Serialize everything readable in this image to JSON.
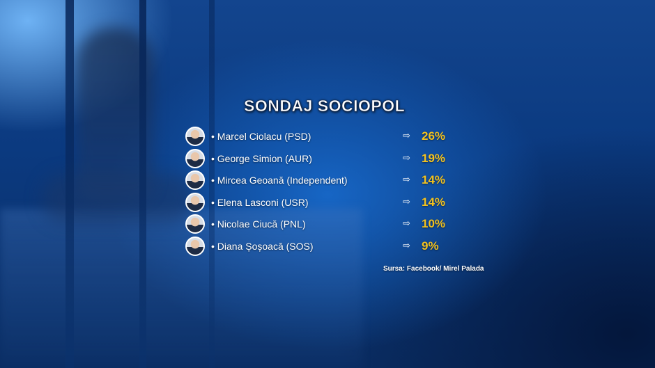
{
  "title": "SONDAJ SOCIOPOL",
  "candidates": [
    {
      "name": "• Marcel Ciolacu (PSD)",
      "arrow": "⇨",
      "percent": "26%"
    },
    {
      "name": "• George Simion (AUR)",
      "arrow": "⇨",
      "percent": "19%"
    },
    {
      "name": "• Mircea Geoană (Independent)",
      "arrow": "⇨",
      "percent": "14%"
    },
    {
      "name": "• Elena Lasconi (USR)",
      "arrow": "⇨",
      "percent": "14%"
    },
    {
      "name": "• Nicolae Ciucă (PNL)",
      "arrow": "⇨",
      "percent": "10%"
    },
    {
      "name": "• Diana Șoșoacă (SOS)",
      "arrow": "⇨",
      "percent": "9%"
    }
  ],
  "source": "Sursa: Facebook/ Mirel Palada",
  "colors": {
    "percent": "#f3c21f",
    "text": "#ffffff",
    "background": "#0b3a80"
  },
  "icons": {
    "avatar": "candidate-portrait-icon",
    "arrow": "right-arrow-icon"
  }
}
